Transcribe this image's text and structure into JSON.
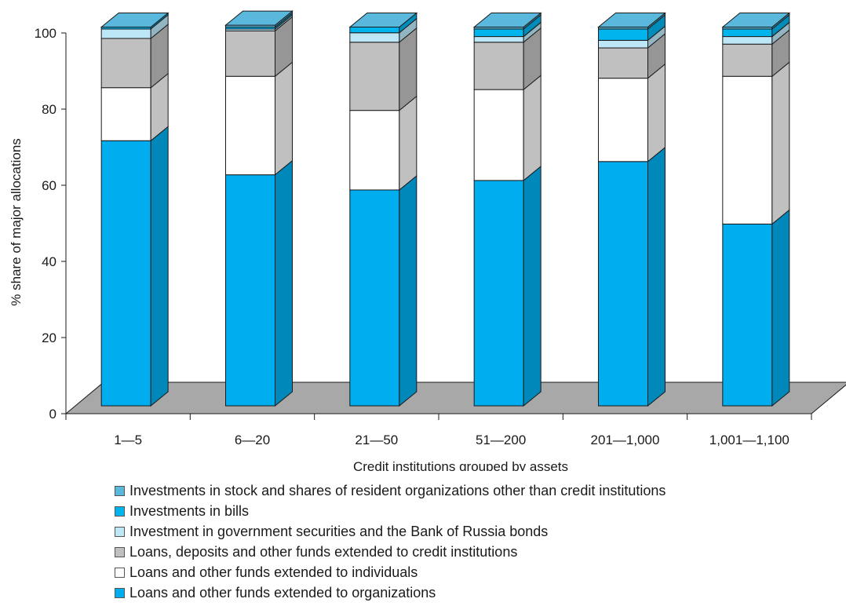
{
  "chart_data": {
    "type": "bar",
    "stacked": true,
    "three_d": true,
    "xlabel": "Credit institutions grouped by assets",
    "ylabel": "% share of major allocations",
    "ylim": [
      0,
      100
    ],
    "yticks": [
      "0",
      "20",
      "40",
      "60",
      "80",
      "100"
    ],
    "categories": [
      "1—5",
      "6—20",
      "21—50",
      "51—200",
      "201—1,000",
      "1,001—1,100"
    ],
    "legend_position": "bottom",
    "series": [
      {
        "name": "Loans and other funds extended to organizations",
        "color": "#00aeef",
        "values": [
          70,
          61,
          57,
          59.5,
          64.5,
          48
        ]
      },
      {
        "name": "Loans and other funds extended to individuals",
        "color": "#ffffff",
        "values": [
          14,
          26,
          21,
          24,
          22,
          39
        ]
      },
      {
        "name": "Loans, deposits and other funds extended to credit institutions",
        "color": "#c0c0c0",
        "values": [
          13,
          12,
          18,
          12.5,
          8,
          8.5
        ]
      },
      {
        "name": "Investment in government securities and the Bank of Russia bonds",
        "color": "#bde7f7",
        "values": [
          2.5,
          0.5,
          2.5,
          1.5,
          2,
          2
        ]
      },
      {
        "name": "Investments in bills",
        "color": "#00b4ee",
        "values": [
          0.5,
          0.5,
          1.5,
          2,
          3,
          2
        ]
      },
      {
        "name": "Investments in stock and shares of resident organizations other than credit institutions",
        "color": "#5ab8dc",
        "values": [
          0,
          0.5,
          0,
          0.5,
          0.5,
          0.5
        ]
      }
    ]
  }
}
